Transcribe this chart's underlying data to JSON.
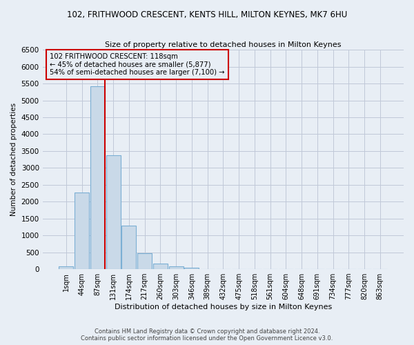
{
  "title": "102, FRITHWOOD CRESCENT, KENTS HILL, MILTON KEYNES, MK7 6HU",
  "subtitle": "Size of property relative to detached houses in Milton Keynes",
  "xlabel": "Distribution of detached houses by size in Milton Keynes",
  "ylabel": "Number of detached properties",
  "footer_line1": "Contains HM Land Registry data © Crown copyright and database right 2024.",
  "footer_line2": "Contains public sector information licensed under the Open Government Licence v3.0.",
  "bar_labels": [
    "1sqm",
    "44sqm",
    "87sqm",
    "131sqm",
    "174sqm",
    "217sqm",
    "260sqm",
    "303sqm",
    "346sqm",
    "389sqm",
    "432sqm",
    "475sqm",
    "518sqm",
    "561sqm",
    "604sqm",
    "648sqm",
    "691sqm",
    "734sqm",
    "777sqm",
    "820sqm",
    "863sqm"
  ],
  "bar_values": [
    75,
    2280,
    5420,
    3380,
    1300,
    480,
    160,
    75,
    45,
    0,
    0,
    0,
    0,
    0,
    0,
    0,
    0,
    0,
    0,
    0,
    0
  ],
  "bar_color": "#c9d9e8",
  "bar_edge_color": "#7bafd4",
  "grid_color": "#c0c8d8",
  "background_color": "#e8eef5",
  "vline_color": "#cc0000",
  "annotation_text": "102 FRITHWOOD CRESCENT: 118sqm\n← 45% of detached houses are smaller (5,877)\n54% of semi-detached houses are larger (7,100) →",
  "annotation_box_color": "#cc0000",
  "ylim": [
    0,
    6500
  ],
  "yticks": [
    0,
    500,
    1000,
    1500,
    2000,
    2500,
    3000,
    3500,
    4000,
    4500,
    5000,
    5500,
    6000,
    6500
  ]
}
